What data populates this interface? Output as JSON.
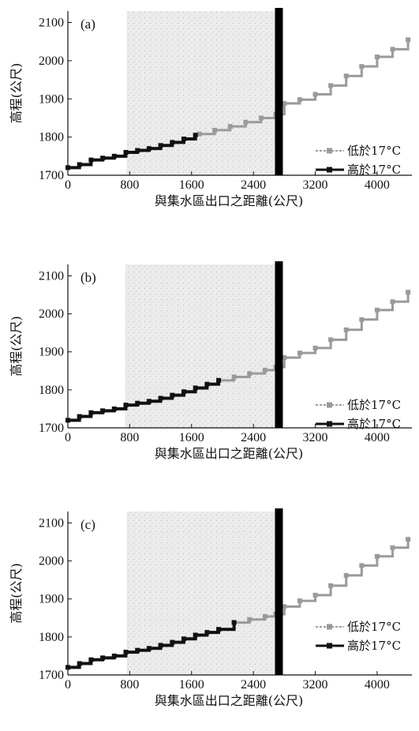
{
  "chart_data": [
    {
      "type": "line",
      "panel_label": "(a)",
      "xlabel": "與集水區出口之距離(公尺)",
      "ylabel": "高程(公尺)",
      "xlim": [
        0,
        4450
      ],
      "ylim": [
        1700,
        2130
      ],
      "xticks": [
        0,
        800,
        1600,
        2400,
        3200,
        4000
      ],
      "yticks": [
        1700,
        1800,
        1900,
        2000,
        2100
      ],
      "shaded_x_range": [
        760,
        2700
      ],
      "vertical_bar_x": 2730,
      "series": [
        {
          "name": "低於17°C",
          "x": [
            1700,
            1900,
            2100,
            2300,
            2500,
            2690,
            2800,
            3000,
            3200,
            3400,
            3600,
            3800,
            4000,
            4200,
            4400
          ],
          "y": [
            1808,
            1818,
            1828,
            1839,
            1850,
            1860,
            1888,
            1898,
            1912,
            1935,
            1960,
            1985,
            2010,
            2030,
            2055
          ]
        },
        {
          "name": "高於17°C",
          "x": [
            0,
            150,
            300,
            450,
            600,
            750,
            900,
            1050,
            1200,
            1350,
            1500,
            1650
          ],
          "y": [
            1720,
            1728,
            1740,
            1745,
            1750,
            1760,
            1765,
            1770,
            1778,
            1786,
            1795,
            1805
          ]
        }
      ]
    },
    {
      "type": "line",
      "panel_label": "(b)",
      "xlabel": "與集水區出口之距離(公尺)",
      "ylabel": "高程(公尺)",
      "xlim": [
        0,
        4450
      ],
      "ylim": [
        1700,
        2130
      ],
      "xticks": [
        0,
        800,
        1600,
        2400,
        3200,
        4000
      ],
      "yticks": [
        1700,
        1800,
        1900,
        2000,
        2100
      ],
      "shaded_x_range": [
        740,
        2700
      ],
      "vertical_bar_x": 2730,
      "series": [
        {
          "name": "低於17°C",
          "x": [
            1950,
            2150,
            2350,
            2550,
            2690,
            2800,
            3000,
            3200,
            3400,
            3600,
            3800,
            4000,
            4200,
            4400
          ],
          "y": [
            1825,
            1834,
            1843,
            1852,
            1860,
            1885,
            1897,
            1910,
            1932,
            1958,
            1985,
            2010,
            2032,
            2057
          ]
        },
        {
          "name": "高於17°C",
          "x": [
            0,
            150,
            300,
            450,
            600,
            750,
            900,
            1050,
            1200,
            1350,
            1500,
            1650,
            1800,
            1950
          ],
          "y": [
            1720,
            1730,
            1740,
            1745,
            1750,
            1760,
            1765,
            1770,
            1778,
            1786,
            1795,
            1805,
            1815,
            1825
          ]
        }
      ]
    },
    {
      "type": "line",
      "panel_label": "(c)",
      "xlabel": "與集水區出口之距離(公尺)",
      "ylabel": "高程(公尺)",
      "xlim": [
        0,
        4450
      ],
      "ylim": [
        1700,
        2130
      ],
      "xticks": [
        0,
        800,
        1600,
        2400,
        3200,
        4000
      ],
      "yticks": [
        1700,
        1800,
        1900,
        2000,
        2100
      ],
      "shaded_x_range": [
        760,
        2700
      ],
      "vertical_bar_x": 2730,
      "series": [
        {
          "name": "低於17°C",
          "x": [
            2150,
            2350,
            2550,
            2690,
            2800,
            3000,
            3200,
            3400,
            3600,
            3800,
            4000,
            4200,
            4400
          ],
          "y": [
            1838,
            1846,
            1854,
            1860,
            1880,
            1895,
            1910,
            1935,
            1962,
            1988,
            2012,
            2035,
            2057
          ]
        },
        {
          "name": "高於17°C",
          "x": [
            0,
            150,
            300,
            450,
            600,
            750,
            900,
            1050,
            1200,
            1350,
            1500,
            1650,
            1800,
            1950,
            2150
          ],
          "y": [
            1720,
            1730,
            1740,
            1745,
            1750,
            1760,
            1765,
            1770,
            1778,
            1786,
            1795,
            1805,
            1812,
            1820,
            1838
          ]
        }
      ]
    }
  ],
  "colors": {
    "axis": "#111111",
    "shade": "#dcdcdc",
    "above_series": "#111111",
    "below_series": "#9a9a9a",
    "vertical_bar": "#000000"
  }
}
